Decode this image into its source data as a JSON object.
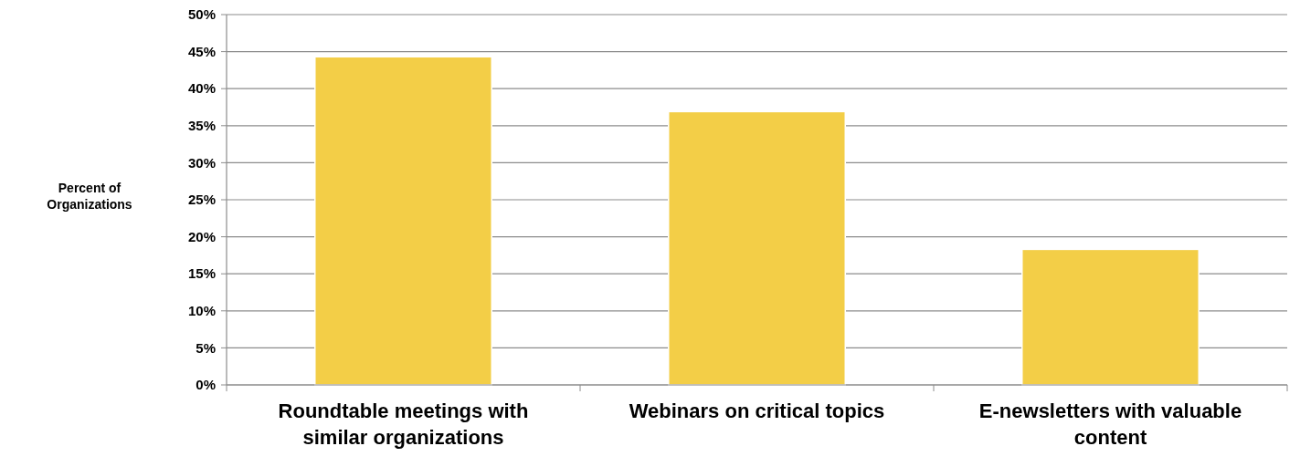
{
  "chart_data": {
    "type": "bar",
    "ylabel": "Percent of Organizations",
    "categories": [
      "Roundtable meetings with similar organizations",
      "Webinars on critical topics",
      "E-newsletters with valuable content"
    ],
    "values": [
      44.3,
      36.9,
      18.3
    ],
    "color": "#f3ce47",
    "ylim": [
      0,
      50
    ],
    "yticks": [
      {
        "value": 0,
        "label": "0%"
      },
      {
        "value": 5,
        "label": "5%"
      },
      {
        "value": 10,
        "label": "10%"
      },
      {
        "value": 15,
        "label": "15%"
      },
      {
        "value": 20,
        "label": "20%"
      },
      {
        "value": 25,
        "label": "25%"
      },
      {
        "value": 30,
        "label": "30%"
      },
      {
        "value": 35,
        "label": "35%"
      },
      {
        "value": 40,
        "label": "40%"
      },
      {
        "value": 45,
        "label": "45%"
      },
      {
        "value": 50,
        "label": "50%"
      }
    ],
    "grid": "y"
  }
}
